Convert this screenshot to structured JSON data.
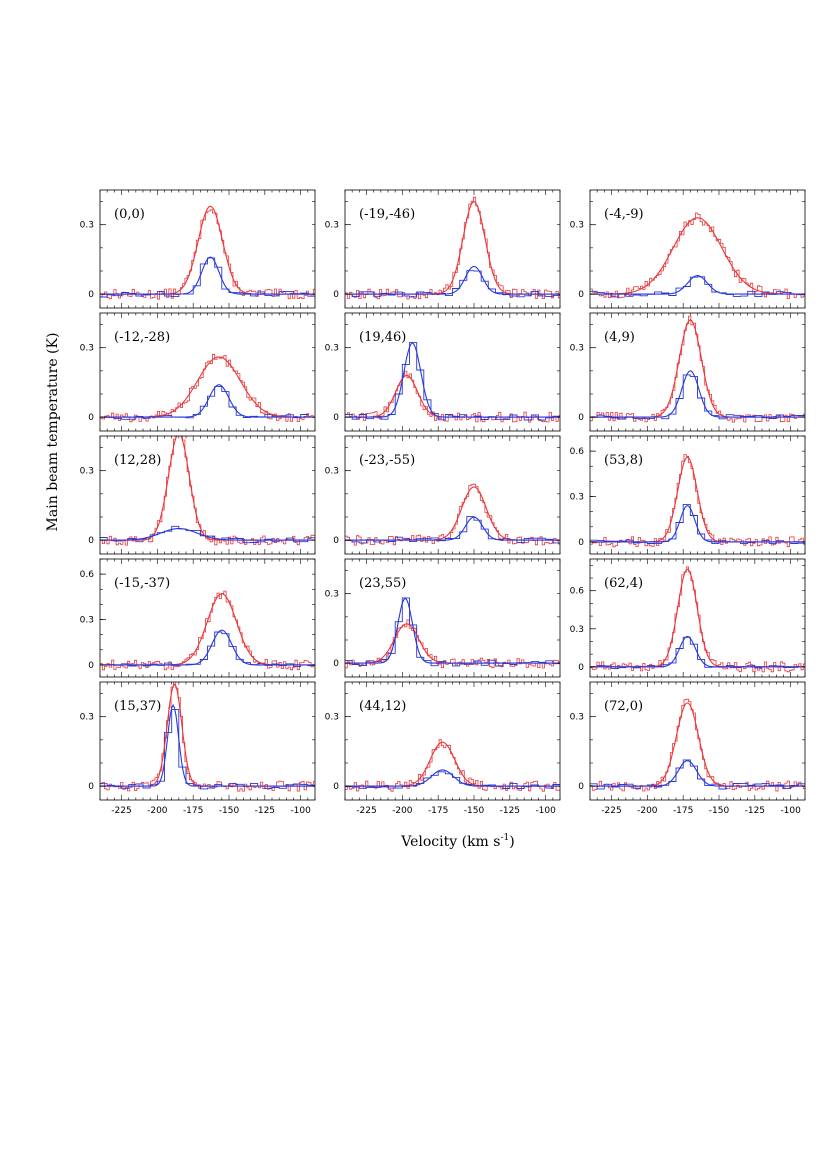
{
  "figure": {
    "ylabel": "Main beam temperature (K)",
    "xlabel_main": "Velocity (km s",
    "xlabel_sup": "-1",
    "xlabel_close": ")"
  },
  "colors": {
    "wide": "#e8373a",
    "narrow": "#2838d8",
    "axis": "#000000"
  },
  "chart_data": [
    {
      "type": "line",
      "label": "(0,0)",
      "xlim": [
        -240,
        -90
      ],
      "ylim": [
        -0.06,
        0.45
      ],
      "yticks": [
        {
          "v": 0,
          "t": "0"
        },
        {
          "v": 0.3,
          "t": "0.3"
        }
      ],
      "xticks": [],
      "series": [
        {
          "name": "",
          "amplitude": 0.38,
          "center": -163,
          "fwhm": 20
        },
        {
          "name": "",
          "amplitude": 0.16,
          "center": -163,
          "fwhm": 14
        }
      ]
    },
    {
      "type": "line",
      "label": "(-19,-46)",
      "xlim": [
        -240,
        -90
      ],
      "ylim": [
        -0.06,
        0.45
      ],
      "yticks": [
        {
          "v": 0,
          "t": "0"
        },
        {
          "v": 0.3,
          "t": "0.3"
        }
      ],
      "xticks": [],
      "series": [
        {
          "name": "",
          "amplitude": 0.4,
          "center": -150,
          "fwhm": 18
        },
        {
          "name": "",
          "amplitude": 0.12,
          "center": -150,
          "fwhm": 14
        }
      ]
    },
    {
      "type": "line",
      "label": "(-4,-9)",
      "xlim": [
        -240,
        -90
      ],
      "ylim": [
        -0.06,
        0.45
      ],
      "yticks": [
        {
          "v": 0,
          "t": "0"
        },
        {
          "v": 0.3,
          "t": "0.3"
        }
      ],
      "xticks": [],
      "series": [
        {
          "name": "",
          "amplitude": 0.33,
          "center": -165,
          "fwhm": 40
        },
        {
          "name": "",
          "amplitude": 0.08,
          "center": -165,
          "fwhm": 16
        }
      ]
    },
    {
      "type": "line",
      "label": "(-12,-28)",
      "xlim": [
        -240,
        -90
      ],
      "ylim": [
        -0.06,
        0.45
      ],
      "yticks": [
        {
          "v": 0,
          "t": "0"
        },
        {
          "v": 0.3,
          "t": "0.3"
        }
      ],
      "xticks": [],
      "series": [
        {
          "name": "",
          "amplitude": 0.26,
          "center": -157,
          "fwhm": 35
        },
        {
          "name": "",
          "amplitude": 0.14,
          "center": -157,
          "fwhm": 16
        }
      ]
    },
    {
      "type": "line",
      "label": "(19,46)",
      "xlim": [
        -240,
        -90
      ],
      "ylim": [
        -0.06,
        0.45
      ],
      "yticks": [
        {
          "v": 0,
          "t": "0"
        },
        {
          "v": 0.3,
          "t": "0.3"
        }
      ],
      "xticks": [],
      "series": [
        {
          "name": "",
          "amplitude": 0.18,
          "center": -197,
          "fwhm": 18
        },
        {
          "name": "",
          "amplitude": 0.32,
          "center": -193,
          "fwhm": 14
        }
      ]
    },
    {
      "type": "line",
      "label": "(4,9)",
      "xlim": [
        -240,
        -90
      ],
      "ylim": [
        -0.06,
        0.45
      ],
      "yticks": [
        {
          "v": 0,
          "t": "0"
        },
        {
          "v": 0.3,
          "t": "0.3"
        }
      ],
      "xticks": [],
      "series": [
        {
          "name": "",
          "amplitude": 0.42,
          "center": -170,
          "fwhm": 18
        },
        {
          "name": "",
          "amplitude": 0.2,
          "center": -170,
          "fwhm": 14
        }
      ]
    },
    {
      "type": "line",
      "label": "(12,28)",
      "xlim": [
        -240,
        -90
      ],
      "ylim": [
        -0.06,
        0.45
      ],
      "yticks": [
        {
          "v": 0,
          "t": "0"
        },
        {
          "v": 0.3,
          "t": "0.3"
        }
      ],
      "xticks": [],
      "series": [
        {
          "name": "",
          "amplitude": 0.46,
          "center": -185,
          "fwhm": 17
        },
        {
          "name": "",
          "amplitude": 0.05,
          "center": -185,
          "fwhm": 30
        }
      ]
    },
    {
      "type": "line",
      "label": "(-23,-55)",
      "xlim": [
        -240,
        -90
      ],
      "ylim": [
        -0.06,
        0.45
      ],
      "yticks": [
        {
          "v": 0,
          "t": "0"
        },
        {
          "v": 0.3,
          "t": "0.3"
        }
      ],
      "xticks": [],
      "series": [
        {
          "name": "",
          "amplitude": 0.23,
          "center": -150,
          "fwhm": 20
        },
        {
          "name": "",
          "amplitude": 0.1,
          "center": -150,
          "fwhm": 14
        }
      ]
    },
    {
      "type": "line",
      "label": "(53,8)",
      "xlim": [
        -240,
        -90
      ],
      "ylim": [
        -0.08,
        0.7
      ],
      "yticks": [
        {
          "v": 0,
          "t": "0"
        },
        {
          "v": 0.3,
          "t": "0.3"
        },
        {
          "v": 0.6,
          "t": "0.6"
        }
      ],
      "xticks": [],
      "series": [
        {
          "name": "",
          "amplitude": 0.56,
          "center": -172,
          "fwhm": 16
        },
        {
          "name": "",
          "amplitude": 0.24,
          "center": -172,
          "fwhm": 12
        }
      ]
    },
    {
      "type": "line",
      "label": "(-15,-37)",
      "xlim": [
        -240,
        -90
      ],
      "ylim": [
        -0.08,
        0.7
      ],
      "yticks": [
        {
          "v": 0,
          "t": "0"
        },
        {
          "v": 0.3,
          "t": "0.3"
        },
        {
          "v": 0.6,
          "t": "0.6"
        }
      ],
      "xticks": [],
      "series": [
        {
          "name": "",
          "amplitude": 0.47,
          "center": -155,
          "fwhm": 24
        },
        {
          "name": "",
          "amplitude": 0.23,
          "center": -155,
          "fwhm": 16
        }
      ]
    },
    {
      "type": "line",
      "label": "(23,55)",
      "xlim": [
        -240,
        -90
      ],
      "ylim": [
        -0.06,
        0.45
      ],
      "yticks": [
        {
          "v": 0,
          "t": "0"
        },
        {
          "v": 0.3,
          "t": "0.3"
        }
      ],
      "xticks": [],
      "series": [
        {
          "name": "",
          "amplitude": 0.17,
          "center": -197,
          "fwhm": 20
        },
        {
          "name": "",
          "amplitude": 0.28,
          "center": -198,
          "fwhm": 12
        }
      ]
    },
    {
      "type": "line",
      "label": "(62,4)",
      "xlim": [
        -240,
        -90
      ],
      "ylim": [
        -0.08,
        0.85
      ],
      "yticks": [
        {
          "v": 0,
          "t": "0"
        },
        {
          "v": 0.3,
          "t": "0.3"
        },
        {
          "v": 0.6,
          "t": "0.6"
        }
      ],
      "xticks": [],
      "series": [
        {
          "name": "",
          "amplitude": 0.77,
          "center": -172,
          "fwhm": 16
        },
        {
          "name": "",
          "amplitude": 0.24,
          "center": -172,
          "fwhm": 13
        }
      ]
    },
    {
      "type": "line",
      "label": "(15,37)",
      "xlim": [
        -240,
        -90
      ],
      "ylim": [
        -0.06,
        0.45
      ],
      "yticks": [
        {
          "v": 0,
          "t": "0"
        },
        {
          "v": 0.3,
          "t": "0.3"
        }
      ],
      "xticks": [
        {
          "v": -225,
          "t": "-225"
        },
        {
          "v": -200,
          "t": "-200"
        },
        {
          "v": -175,
          "t": "-175"
        },
        {
          "v": -150,
          "t": "-150"
        },
        {
          "v": -125,
          "t": "-125"
        },
        {
          "v": -100,
          "t": "-100"
        }
      ],
      "series": [
        {
          "name": "",
          "amplitude": 0.44,
          "center": -188,
          "fwhm": 12
        },
        {
          "name": "",
          "amplitude": 0.35,
          "center": -189,
          "fwhm": 9
        }
      ]
    },
    {
      "type": "line",
      "label": "(44,12)",
      "xlim": [
        -240,
        -90
      ],
      "ylim": [
        -0.06,
        0.45
      ],
      "yticks": [
        {
          "v": 0,
          "t": "0"
        },
        {
          "v": 0.3,
          "t": "0.3"
        }
      ],
      "xticks": [
        {
          "v": -225,
          "t": "-225"
        },
        {
          "v": -200,
          "t": "-200"
        },
        {
          "v": -175,
          "t": "-175"
        },
        {
          "v": -150,
          "t": "-150"
        },
        {
          "v": -125,
          "t": "-125"
        },
        {
          "v": -100,
          "t": "-100"
        }
      ],
      "series": [
        {
          "name": "",
          "amplitude": 0.19,
          "center": -172,
          "fwhm": 20
        },
        {
          "name": "",
          "amplitude": 0.07,
          "center": -172,
          "fwhm": 18
        }
      ]
    },
    {
      "type": "line",
      "label": "(72,0)",
      "xlim": [
        -240,
        -90
      ],
      "ylim": [
        -0.06,
        0.45
      ],
      "yticks": [
        {
          "v": 0,
          "t": "0"
        },
        {
          "v": 0.3,
          "t": "0.3"
        }
      ],
      "xticks": [
        {
          "v": -225,
          "t": "-225"
        },
        {
          "v": -200,
          "t": "-200"
        },
        {
          "v": -175,
          "t": "-175"
        },
        {
          "v": -150,
          "t": "-150"
        },
        {
          "v": -125,
          "t": "-125"
        },
        {
          "v": -100,
          "t": "-100"
        }
      ],
      "series": [
        {
          "name": "",
          "amplitude": 0.36,
          "center": -172,
          "fwhm": 18
        },
        {
          "name": "",
          "amplitude": 0.11,
          "center": -172,
          "fwhm": 15
        }
      ]
    }
  ]
}
